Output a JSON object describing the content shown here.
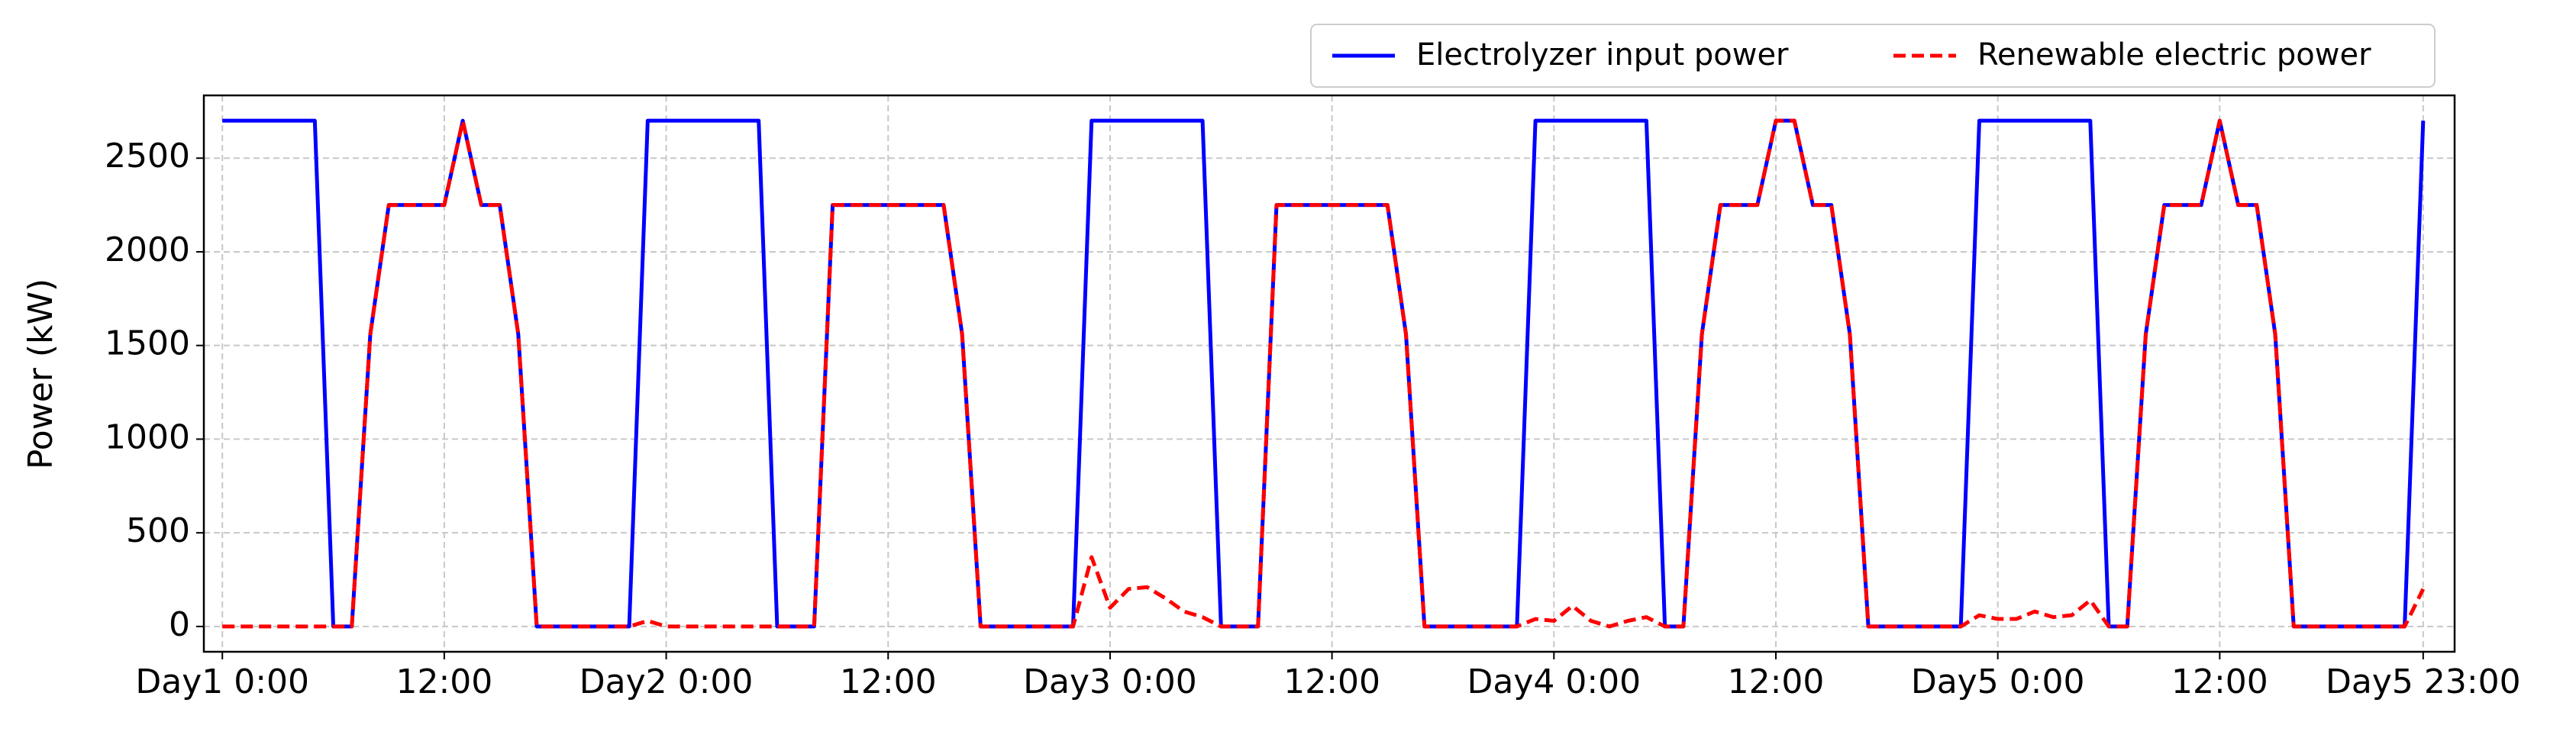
{
  "chart_data": {
    "type": "line",
    "ylabel": "Power (kW)",
    "x": [
      0,
      1,
      2,
      3,
      4,
      5,
      6,
      7,
      8,
      9,
      10,
      11,
      12,
      13,
      14,
      15,
      16,
      17,
      18,
      19,
      20,
      21,
      22,
      23,
      24,
      25,
      26,
      27,
      28,
      29,
      30,
      31,
      32,
      33,
      34,
      35,
      36,
      37,
      38,
      39,
      40,
      41,
      42,
      43,
      44,
      45,
      46,
      47,
      48,
      49,
      50,
      51,
      52,
      53,
      54,
      55,
      56,
      57,
      58,
      59,
      60,
      61,
      62,
      63,
      64,
      65,
      66,
      67,
      68,
      69,
      70,
      71,
      72,
      73,
      74,
      75,
      76,
      77,
      78,
      79,
      80,
      81,
      82,
      83,
      84,
      85,
      86,
      87,
      88,
      89,
      90,
      91,
      92,
      93,
      94,
      95,
      96,
      97,
      98,
      99,
      100,
      101,
      102,
      103,
      104,
      105,
      106,
      107,
      108,
      109,
      110,
      111,
      112,
      113,
      114,
      115,
      116,
      117,
      118,
      119
    ],
    "series": [
      {
        "name": "Electrolyzer input power",
        "color": "#0000ff",
        "dash": false,
        "values": [
          2700,
          2700,
          2700,
          2700,
          2700,
          2700,
          0,
          0,
          1560,
          2250,
          2250,
          2250,
          2250,
          2700,
          2250,
          2250,
          1560,
          0,
          0,
          0,
          0,
          0,
          0,
          2700,
          2700,
          2700,
          2700,
          2700,
          2700,
          2700,
          0,
          0,
          0,
          2250,
          2250,
          2250,
          2250,
          2250,
          2250,
          2250,
          1560,
          0,
          0,
          0,
          0,
          0,
          0,
          2700,
          2700,
          2700,
          2700,
          2700,
          2700,
          2700,
          0,
          0,
          0,
          2250,
          2250,
          2250,
          2250,
          2250,
          2250,
          2250,
          1560,
          0,
          0,
          0,
          0,
          0,
          0,
          2700,
          2700,
          2700,
          2700,
          2700,
          2700,
          2700,
          0,
          0,
          1560,
          2250,
          2250,
          2250,
          2700,
          2700,
          2250,
          2250,
          1560,
          0,
          0,
          0,
          0,
          0,
          0,
          2700,
          2700,
          2700,
          2700,
          2700,
          2700,
          2700,
          0,
          0,
          1560,
          2250,
          2250,
          2250,
          2700,
          2250,
          2250,
          1560,
          0,
          0,
          0,
          0,
          0,
          0,
          0,
          2700
        ]
      },
      {
        "name": "Renewable electric power",
        "color": "#ff0000",
        "dash": true,
        "values": [
          0,
          0,
          0,
          0,
          0,
          0,
          0,
          0,
          1560,
          2250,
          2250,
          2250,
          2250,
          2700,
          2250,
          2250,
          1560,
          0,
          0,
          0,
          0,
          0,
          0,
          30,
          0,
          0,
          0,
          0,
          0,
          0,
          0,
          0,
          0,
          2250,
          2250,
          2250,
          2250,
          2250,
          2250,
          2250,
          1560,
          0,
          0,
          0,
          0,
          0,
          0,
          370,
          100,
          200,
          210,
          150,
          80,
          50,
          0,
          0,
          0,
          2250,
          2250,
          2250,
          2250,
          2250,
          2250,
          2250,
          1560,
          0,
          0,
          0,
          0,
          0,
          0,
          40,
          30,
          110,
          30,
          0,
          30,
          50,
          0,
          0,
          1560,
          2250,
          2250,
          2250,
          2700,
          2700,
          2250,
          2250,
          1560,
          0,
          0,
          0,
          0,
          0,
          0,
          60,
          40,
          40,
          80,
          50,
          60,
          140,
          0,
          0,
          1560,
          2250,
          2250,
          2250,
          2700,
          2250,
          2250,
          1560,
          0,
          0,
          0,
          0,
          0,
          0,
          0,
          200
        ]
      }
    ],
    "xlim": [
      -1,
      120.7
    ],
    "ylim": [
      -135,
      2835
    ],
    "xticks": [
      {
        "value": 0,
        "label": "Day1 0:00"
      },
      {
        "value": 12,
        "label": "12:00"
      },
      {
        "value": 24,
        "label": "Day2 0:00"
      },
      {
        "value": 36,
        "label": "12:00"
      },
      {
        "value": 48,
        "label": "Day3 0:00"
      },
      {
        "value": 60,
        "label": "12:00"
      },
      {
        "value": 72,
        "label": "Day4 0:00"
      },
      {
        "value": 84,
        "label": "12:00"
      },
      {
        "value": 96,
        "label": "Day5 0:00"
      },
      {
        "value": 108,
        "label": "12:00"
      },
      {
        "value": 119,
        "label": "Day5 23:00"
      }
    ],
    "yticks": [
      0,
      500,
      1000,
      1500,
      2000,
      2500
    ],
    "grid": true
  }
}
